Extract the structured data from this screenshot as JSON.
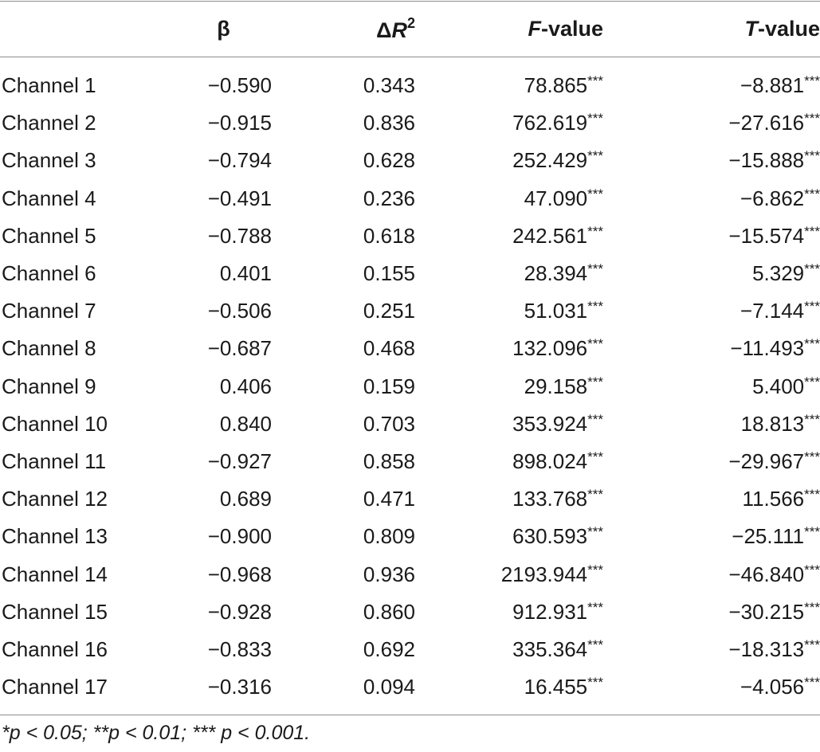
{
  "table": {
    "headers": {
      "label": "",
      "beta": "β",
      "delta_r2_prefix": "Δ",
      "delta_r2_var": "R",
      "delta_r2_sup": "2",
      "f_var": "F",
      "f_suffix": "-value",
      "t_var": "T",
      "t_suffix": "-value"
    },
    "rows": [
      {
        "label": "Channel 1",
        "beta": "−0.590",
        "delta_r2": "0.343",
        "f": "78.865",
        "f_sig": "***",
        "t": "−8.881",
        "t_sig": "***"
      },
      {
        "label": "Channel 2",
        "beta": "−0.915",
        "delta_r2": "0.836",
        "f": "762.619",
        "f_sig": "***",
        "t": "−27.616",
        "t_sig": "***"
      },
      {
        "label": "Channel 3",
        "beta": "−0.794",
        "delta_r2": "0.628",
        "f": "252.429",
        "f_sig": "***",
        "t": "−15.888",
        "t_sig": "***"
      },
      {
        "label": "Channel 4",
        "beta": "−0.491",
        "delta_r2": "0.236",
        "f": "47.090",
        "f_sig": "***",
        "t": "−6.862",
        "t_sig": "***"
      },
      {
        "label": "Channel 5",
        "beta": "−0.788",
        "delta_r2": "0.618",
        "f": "242.561",
        "f_sig": "***",
        "t": "−15.574",
        "t_sig": "***"
      },
      {
        "label": "Channel 6",
        "beta": "0.401",
        "delta_r2": "0.155",
        "f": "28.394",
        "f_sig": "***",
        "t": "5.329",
        "t_sig": "***"
      },
      {
        "label": "Channel 7",
        "beta": "−0.506",
        "delta_r2": "0.251",
        "f": "51.031",
        "f_sig": "***",
        "t": "−7.144",
        "t_sig": "***"
      },
      {
        "label": "Channel 8",
        "beta": "−0.687",
        "delta_r2": "0.468",
        "f": "132.096",
        "f_sig": "***",
        "t": "−11.493",
        "t_sig": "***"
      },
      {
        "label": "Channel 9",
        "beta": "0.406",
        "delta_r2": "0.159",
        "f": "29.158",
        "f_sig": "***",
        "t": "5.400",
        "t_sig": "***"
      },
      {
        "label": "Channel 10",
        "beta": "0.840",
        "delta_r2": "0.703",
        "f": "353.924",
        "f_sig": "***",
        "t": "18.813",
        "t_sig": "***"
      },
      {
        "label": "Channel 11",
        "beta": "−0.927",
        "delta_r2": "0.858",
        "f": "898.024",
        "f_sig": "***",
        "t": "−29.967",
        "t_sig": "***"
      },
      {
        "label": "Channel 12",
        "beta": "0.689",
        "delta_r2": "0.471",
        "f": "133.768",
        "f_sig": "***",
        "t": "11.566",
        "t_sig": "***"
      },
      {
        "label": "Channel 13",
        "beta": "−0.900",
        "delta_r2": "0.809",
        "f": "630.593",
        "f_sig": "***",
        "t": "−25.111",
        "t_sig": "***"
      },
      {
        "label": "Channel 14",
        "beta": "−0.968",
        "delta_r2": "0.936",
        "f": "2193.944",
        "f_sig": "***",
        "t": "−46.840",
        "t_sig": "***"
      },
      {
        "label": "Channel 15",
        "beta": "−0.928",
        "delta_r2": "0.860",
        "f": "912.931",
        "f_sig": "***",
        "t": "−30.215",
        "t_sig": "***"
      },
      {
        "label": "Channel 16",
        "beta": "−0.833",
        "delta_r2": "0.692",
        "f": "335.364",
        "f_sig": "***",
        "t": "−18.313",
        "t_sig": "***"
      },
      {
        "label": "Channel 17",
        "beta": "−0.316",
        "delta_r2": "0.094",
        "f": "16.455",
        "f_sig": "***",
        "t": "−4.056",
        "t_sig": "***"
      }
    ]
  },
  "footnote": "*p < 0.05; **p < 0.01; *** p < 0.001."
}
